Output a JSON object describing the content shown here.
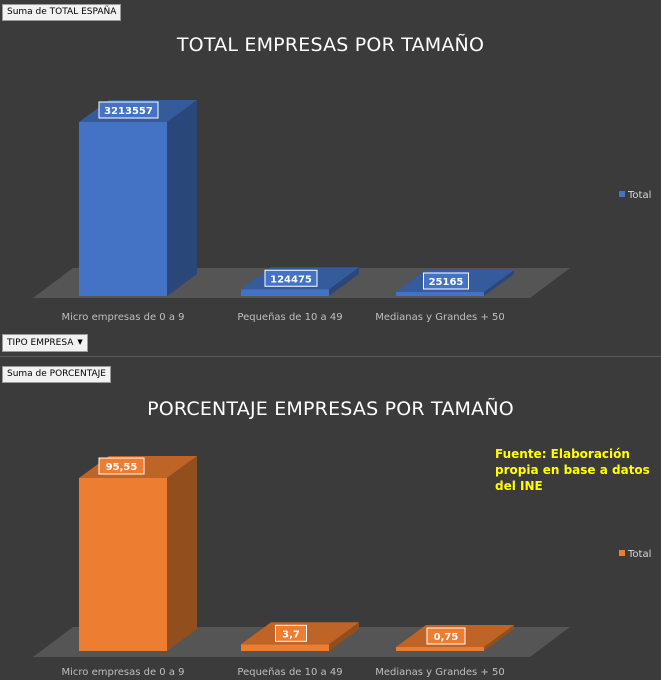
{
  "top": {
    "field_label": "Suma de TOTAL ESPAÑA",
    "filter_button": "TIPO EMPRESA",
    "legend_label": "Total",
    "color": "#4472c4"
  },
  "bottom": {
    "field_label": "Suma de PORCENTAJE",
    "legend_label": "Total",
    "source_note": "Fuente: Elaboración propia en base a datos del INE",
    "color": "#ed7d31"
  },
  "chart_data": [
    {
      "type": "bar",
      "title": "TOTAL EMPRESAS POR TAMAÑO",
      "categories": [
        "Micro empresas de 0 a 9",
        "Pequeñas de 10 a 49",
        "Medianas y Grandes + 50"
      ],
      "series": [
        {
          "name": "Total",
          "values": [
            3213557,
            124475,
            25165
          ],
          "labels": [
            "3213557",
            "124475",
            "25165"
          ]
        }
      ],
      "legend": "right"
    },
    {
      "type": "bar",
      "title": "PORCENTAJE EMPRESAS POR TAMAÑO",
      "categories": [
        "Micro empresas de 0 a 9",
        "Pequeñas de 10 a 49",
        "Medianas y Grandes + 50"
      ],
      "series": [
        {
          "name": "Total",
          "values": [
            95.55,
            3.7,
            0.75
          ],
          "labels": [
            "95,55",
            "3,7",
            "0,75"
          ]
        }
      ],
      "legend": "right"
    }
  ]
}
